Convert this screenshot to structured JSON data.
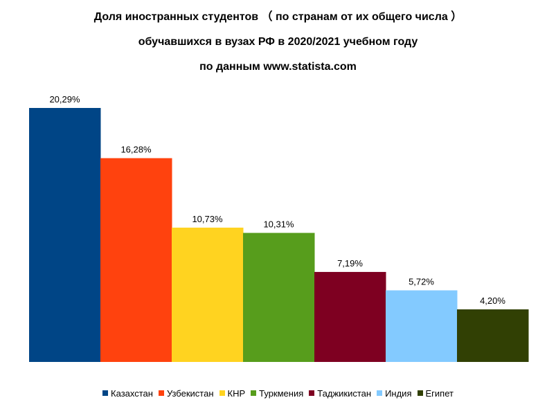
{
  "title_lines": [
    "Доля иностранных студентов （ по странам от их общего числа ）",
    "обучавшихся в вузах РФ в 2020/2021 учебном году",
    "по данным www.statista.com"
  ],
  "chart_data": {
    "type": "bar",
    "title": "Доля иностранных студентов （ по странам от их общего числа ） обучавшихся в вузах РФ в 2020/2021 учебном году по данным www.statista.com",
    "categories": [
      "Казахстан",
      "Узбекистан",
      "КНР",
      "Туркмения",
      "Таджикистан",
      "Индия",
      "Египет"
    ],
    "series": [
      {
        "name": "Казахстан",
        "value": 20.29,
        "label": "20,29%",
        "color": "#004586"
      },
      {
        "name": "Узбекистан",
        "value": 16.28,
        "label": "16,28%",
        "color": "#ff420e"
      },
      {
        "name": "КНР",
        "value": 10.73,
        "label": "10,73%",
        "color": "#ffd320"
      },
      {
        "name": "Туркмения",
        "value": 10.31,
        "label": "10,31%",
        "color": "#579d1c"
      },
      {
        "name": "Таджикистан",
        "value": 7.19,
        "label": "7,19%",
        "color": "#7e0021"
      },
      {
        "name": "Индия",
        "value": 5.72,
        "label": "5,72%",
        "color": "#83caff"
      },
      {
        "name": "Египет",
        "value": 4.2,
        "label": "4,20%",
        "color": "#314004"
      }
    ],
    "ylim": [
      0,
      20.29
    ],
    "grid": false,
    "legend_position": "bottom"
  }
}
